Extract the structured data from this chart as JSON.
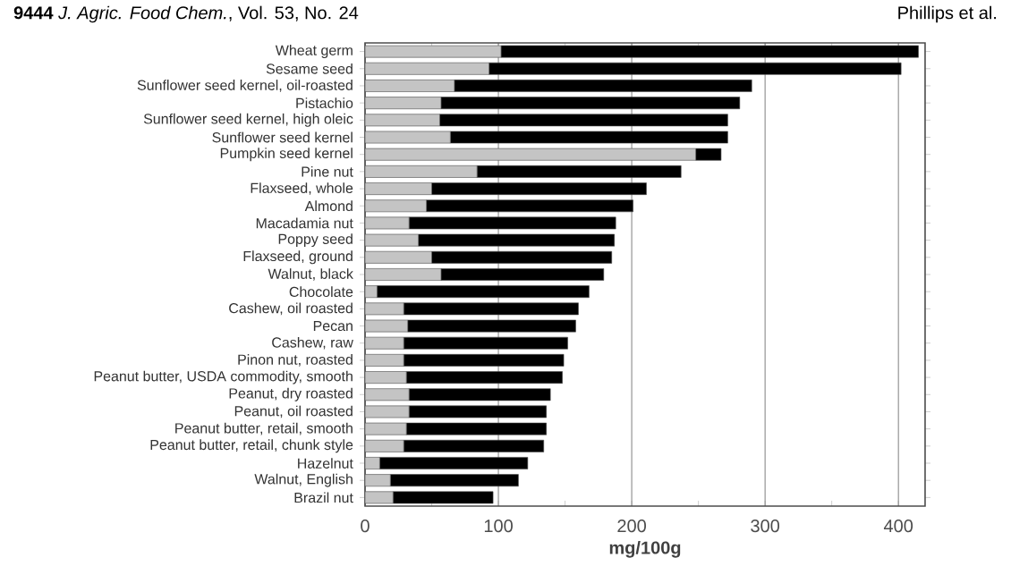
{
  "chart_data": {
    "type": "bar",
    "orientation": "horizontal",
    "stacked": true,
    "annotations": [
      "**9444**   *J. Agric. Food Chem.*, Vol. 53, No. 24",
      "Phillips et al."
    ],
    "xlabel": "mg/100g",
    "categories": [
      "Wheat germ",
      "Sesame seed",
      "Sunflower seed kernel, oil-roasted",
      "Pistachio",
      "Sunflower seed kernel, high oleic",
      "Sunflower seed kernel",
      "Pumpkin seed kernel",
      "Pine nut",
      "Flaxseed, whole",
      "Almond",
      "Macadamia nut",
      "Poppy seed",
      "Flaxseed, ground",
      "Walnut, black",
      "Chocolate",
      "Cashew, oil roasted",
      "Pecan",
      "Cashew, raw",
      "Pinon nut, roasted",
      "Peanut butter, USDA commodity, smooth",
      "Peanut, dry roasted",
      "Peanut, oil roasted",
      "Peanut butter, retail, smooth",
      "Peanut butter, retail, chunk style",
      "Hazelnut",
      "Walnut, English",
      "Brazil nut"
    ],
    "series": [
      {
        "color": "#c4c4c4",
        "values": [
          102,
          93,
          67,
          57,
          56,
          64,
          248,
          84,
          50,
          46,
          33,
          40,
          50,
          57,
          9,
          29,
          32,
          29,
          29,
          31,
          33,
          33,
          31,
          29,
          11,
          19,
          21
        ]
      },
      {
        "color": "#000000",
        "values": [
          313,
          309,
          223,
          224,
          216,
          208,
          19,
          153,
          161,
          155,
          155,
          147,
          135,
          122,
          159,
          131,
          126,
          123,
          120,
          117,
          106,
          103,
          105,
          105,
          111,
          96,
          75
        ]
      }
    ],
    "xlim": [
      0,
      420
    ],
    "xticks": [
      0,
      {
        "value": 50,
        "label": null
      },
      100,
      {
        "value": 150,
        "label": null
      },
      200,
      {
        "value": 250,
        "label": null
      },
      300,
      {
        "value": 350,
        "label": null
      },
      400
    ],
    "grid": "x"
  }
}
